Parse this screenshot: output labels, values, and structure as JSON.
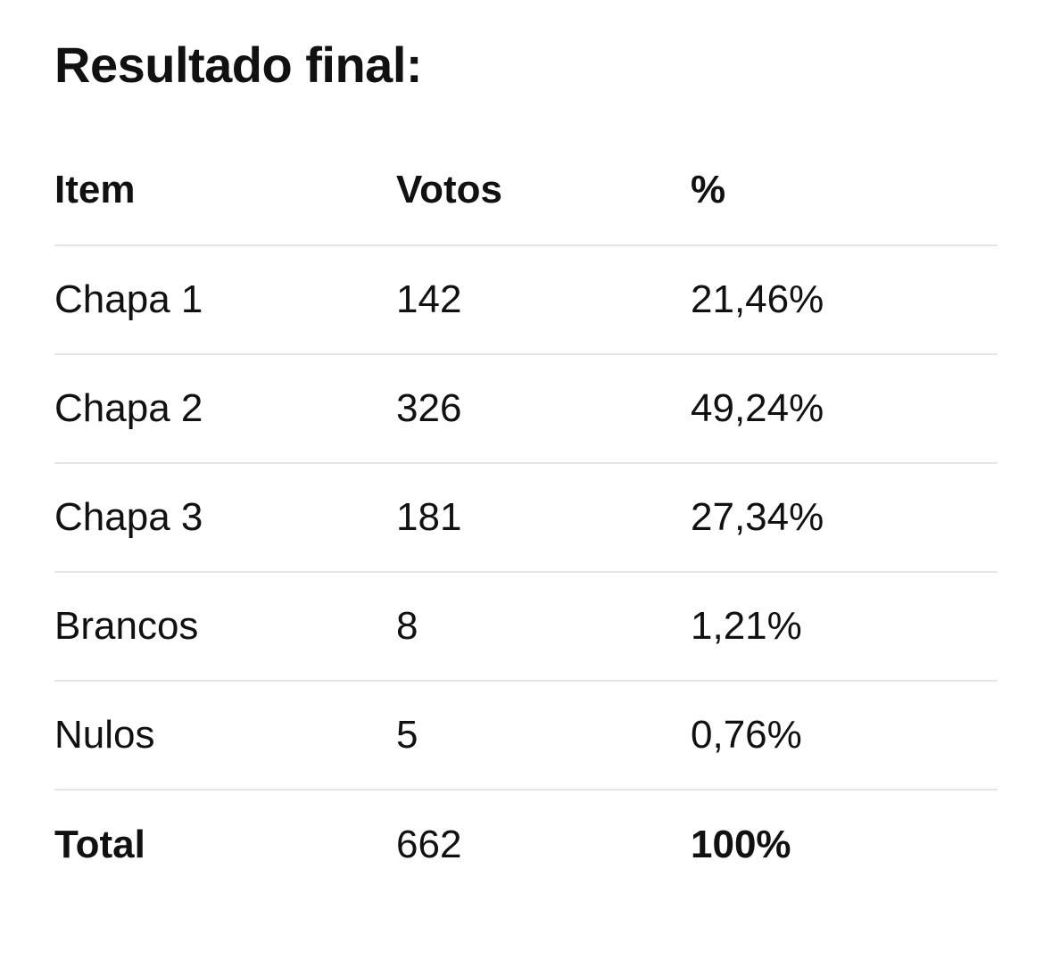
{
  "title": "Resultado final:",
  "table": {
    "headers": {
      "item": "Item",
      "votes": "Votos",
      "percent": "%"
    },
    "rows": [
      {
        "item": "Chapa 1",
        "votes": "142",
        "percent": "21,46%"
      },
      {
        "item": "Chapa 2",
        "votes": "326",
        "percent": "49,24%"
      },
      {
        "item": "Chapa 3",
        "votes": "181",
        "percent": "27,34%"
      },
      {
        "item": "Brancos",
        "votes": "8",
        "percent": "1,21%"
      },
      {
        "item": "Nulos",
        "votes": "5",
        "percent": "0,76%"
      }
    ],
    "total": {
      "item": "Total",
      "votes": "662",
      "percent": "100%"
    }
  },
  "colors": {
    "text": "#111111",
    "divider": "#e6e6e6",
    "background": "#ffffff"
  }
}
